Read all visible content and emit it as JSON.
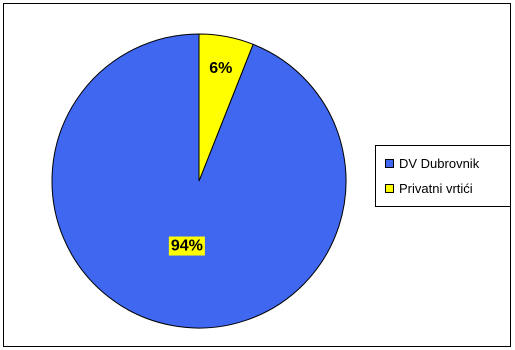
{
  "chart_data": {
    "type": "pie",
    "title": "",
    "slices": [
      {
        "name": "DV Dubrovnik",
        "value": 94,
        "label": "94%",
        "color": "#3f67ef"
      },
      {
        "name": "Privatni vrtići",
        "value": 6,
        "label": "6%",
        "color": "#ffff00"
      }
    ],
    "start_angle_deg": 0,
    "direction": "counterclockwise",
    "data_label_background": "#ffff00",
    "legend": {
      "position": "right",
      "items": [
        "DV Dubrovnik",
        "Privatni vrtići"
      ]
    }
  }
}
